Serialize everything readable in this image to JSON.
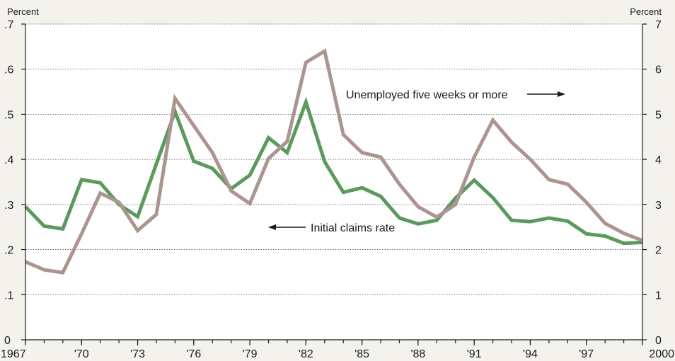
{
  "chart_data": {
    "type": "line",
    "left_axis": {
      "unit_label": "Percent",
      "ylim": [
        0,
        0.7
      ],
      "tick_values": [
        0,
        0.1,
        0.2,
        0.3,
        0.4,
        0.5,
        0.6,
        0.7
      ],
      "tick_labels": [
        "0",
        ".1",
        ".2",
        ".3",
        ".4",
        ".5",
        ".6",
        ".7"
      ]
    },
    "right_axis": {
      "unit_label": "Percent",
      "ylim": [
        0,
        7
      ],
      "tick_values": [
        0,
        1,
        2,
        3,
        4,
        5,
        6,
        7
      ],
      "tick_labels": [
        "0",
        "1",
        "2",
        "3",
        "4",
        "5",
        "6",
        "7"
      ]
    },
    "xlim": [
      1967,
      2000
    ],
    "x_ticks": [
      {
        "value": 1967,
        "label": "1967"
      },
      {
        "value": 1970,
        "label": "'70"
      },
      {
        "value": 1973,
        "label": "'73"
      },
      {
        "value": 1976,
        "label": "'76"
      },
      {
        "value": 1979,
        "label": "'79"
      },
      {
        "value": 1982,
        "label": "'82"
      },
      {
        "value": 1985,
        "label": "'85"
      },
      {
        "value": 1988,
        "label": "'88"
      },
      {
        "value": 1991,
        "label": "'91"
      },
      {
        "value": 1994,
        "label": "'94"
      },
      {
        "value": 1997,
        "label": "'97"
      },
      {
        "value": 2000,
        "label": "2000"
      }
    ],
    "grid": true,
    "series": [
      {
        "name": "Initial claims rate",
        "axis": "left",
        "color": "#5b9a5c",
        "x": [
          1967,
          1968,
          1969,
          1970,
          1971,
          1972,
          1973,
          1974,
          1975,
          1976,
          1977,
          1978,
          1979,
          1980,
          1981,
          1982,
          1983,
          1984,
          1985,
          1986,
          1987,
          1988,
          1989,
          1990,
          1991,
          1992,
          1993,
          1994,
          1995,
          1996,
          1997,
          1998,
          1999,
          2000
        ],
        "values": [
          0.295,
          0.252,
          0.246,
          0.355,
          0.348,
          0.3,
          0.273,
          0.39,
          0.506,
          0.396,
          0.38,
          0.335,
          0.365,
          0.448,
          0.415,
          0.527,
          0.395,
          0.327,
          0.337,
          0.318,
          0.27,
          0.257,
          0.265,
          0.314,
          0.354,
          0.315,
          0.265,
          0.262,
          0.27,
          0.263,
          0.235,
          0.23,
          0.214,
          0.216
        ]
      },
      {
        "name": "Unemployed five weeks or more",
        "axis": "right",
        "color": "#ac9490",
        "x": [
          1967,
          1968,
          1969,
          1970,
          1971,
          1972,
          1973,
          1974,
          1975,
          1976,
          1977,
          1978,
          1979,
          1980,
          1981,
          1982,
          1983,
          1984,
          1985,
          1986,
          1987,
          1988,
          1989,
          1990,
          1991,
          1992,
          1993,
          1994,
          1995,
          1996,
          1997,
          1998,
          1999,
          2000
        ],
        "values": [
          1.73,
          1.55,
          1.49,
          2.35,
          3.25,
          3.05,
          2.42,
          2.78,
          5.35,
          4.75,
          4.15,
          3.3,
          3.02,
          4.02,
          4.4,
          6.15,
          6.4,
          4.55,
          4.15,
          4.05,
          3.45,
          2.95,
          2.72,
          3.0,
          4.05,
          4.87,
          4.38,
          4.0,
          3.55,
          3.45,
          3.05,
          2.58,
          2.36,
          2.2
        ]
      }
    ],
    "annotations": [
      {
        "text": "Unemployed five weeks or more",
        "arrow": "right"
      },
      {
        "text": "Initial claims rate",
        "arrow": "left"
      }
    ]
  }
}
